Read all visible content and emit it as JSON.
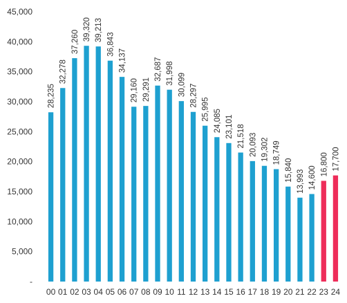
{
  "chart_data": {
    "type": "bar",
    "title": "",
    "xlabel": "",
    "ylabel": "",
    "categories": [
      "00",
      "01",
      "02",
      "03",
      "04",
      "05",
      "06",
      "07",
      "08",
      "09",
      "10",
      "11",
      "12",
      "13",
      "14",
      "15",
      "16",
      "17",
      "18",
      "19",
      "20",
      "21",
      "22",
      "23",
      "24"
    ],
    "values": [
      28235,
      32278,
      37260,
      39320,
      39213,
      36843,
      34137,
      29160,
      29291,
      32687,
      31998,
      30099,
      28297,
      25995,
      24085,
      23101,
      21518,
      20093,
      19302,
      18749,
      15840,
      13993,
      14600,
      16800,
      17700
    ],
    "data_labels": [
      "28,235",
      "32,278",
      "37,260",
      "39,320",
      "39,213",
      "36,843",
      "34,137",
      "29,160",
      "29,291",
      "32,687",
      "31,998",
      "30,099",
      "28,297",
      "25,995",
      "24,085",
      "23,101",
      "21,518",
      "20,093",
      "19,302",
      "18,749",
      "15,840",
      "13,993",
      "14,600",
      "16,800",
      "17,700"
    ],
    "ylim": [
      0,
      45000
    ],
    "yticks": [
      0,
      5000,
      10000,
      15000,
      20000,
      25000,
      30000,
      35000,
      40000,
      45000
    ],
    "ytick_labels": [
      "-",
      "5,000",
      "10,000",
      "15,000",
      "20,000",
      "25,000",
      "30,000",
      "35,000",
      "40,000",
      "45,000"
    ],
    "grid": false,
    "legend": "none",
    "colors": {
      "actual": "#1EA0D0",
      "forecast": "#EE2D5A"
    },
    "highlighted_categories": [
      "23",
      "24"
    ]
  }
}
